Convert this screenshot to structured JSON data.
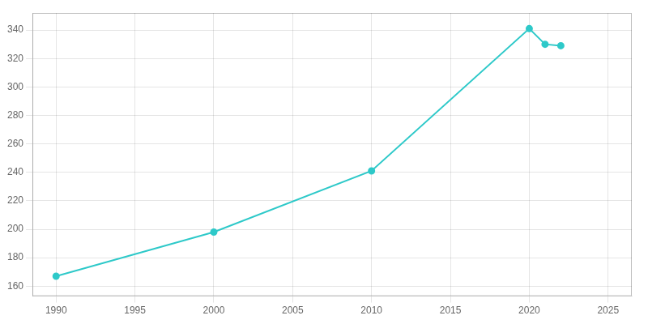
{
  "chart_data": {
    "type": "line",
    "x": [
      1990,
      2000,
      2010,
      2020,
      2021,
      2022
    ],
    "values": [
      167,
      198,
      241,
      341,
      330,
      329
    ],
    "color": "#2ec9c9",
    "marker": "circle",
    "xlim": [
      1988.5,
      2026.5
    ],
    "ylim": [
      153,
      352
    ],
    "xticks": [
      1990,
      1995,
      2000,
      2005,
      2010,
      2015,
      2020,
      2025
    ],
    "yticks": [
      160,
      180,
      200,
      220,
      240,
      260,
      280,
      300,
      320,
      340
    ],
    "grid": true
  }
}
